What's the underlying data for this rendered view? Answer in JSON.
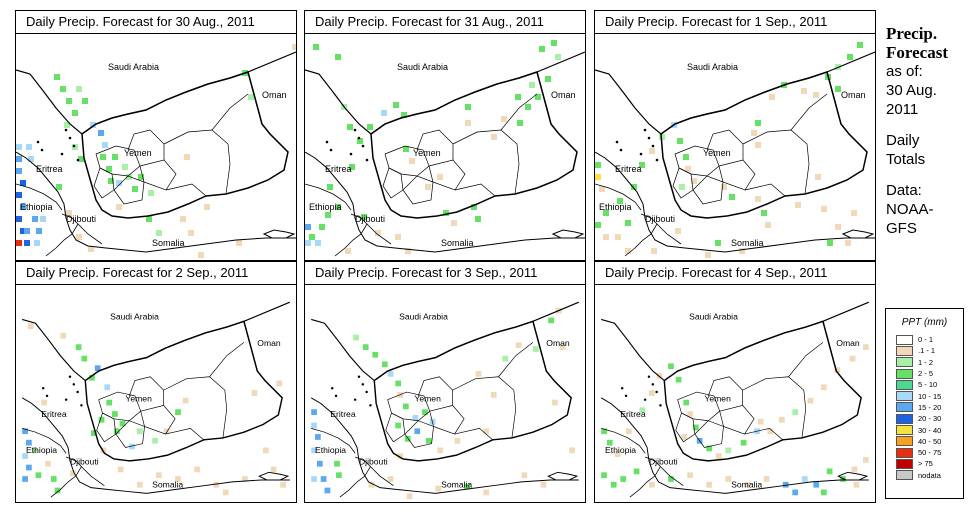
{
  "panels": [
    {
      "title": "Daily Precip. Forecast for  30 Aug., 2011"
    },
    {
      "title": "Daily Precip. Forecast for  31 Aug., 2011"
    },
    {
      "title": "Daily Precip. Forecast for  1 Sep., 2011"
    },
    {
      "title": "Daily Precip. Forecast for  2 Sep., 2011"
    },
    {
      "title": "Daily Precip. Forecast for  3 Sep., 2011"
    },
    {
      "title": "Daily Precip. Forecast for  4 Sep., 2011"
    }
  ],
  "countries": {
    "saudi_arabia": "Saudi Arabia",
    "oman": "Oman",
    "yemen": "Yemen",
    "eritrea": "Eritrea",
    "ethiopia": "Ethiopia",
    "djibouti": "Djibouti",
    "somalia": "Somalia"
  },
  "side": {
    "title_line1": "Precip.",
    "title_line2": "Forecast",
    "asof": "as of:",
    "date_line1": "30 Aug.",
    "date_line2": "2011",
    "daily_line1": "Daily",
    "daily_line2": "Totals",
    "data_line1": "Data:",
    "data_line2": "NOAA-",
    "data_line3": "GFS"
  },
  "legend": {
    "title": "PPT (mm)",
    "items": [
      {
        "label": "0 - 1",
        "color": "#ffffff"
      },
      {
        "label": ".1 - 1",
        "color": "#f0d8b8"
      },
      {
        "label": "1 - 2",
        "color": "#a8f0a8"
      },
      {
        "label": "2 - 5",
        "color": "#66e066"
      },
      {
        "label": "5 - 10",
        "color": "#4cd890"
      },
      {
        "label": "10 - 15",
        "color": "#a8d8f8"
      },
      {
        "label": "15 - 20",
        "color": "#5aa8f0"
      },
      {
        "label": "20 - 30",
        "color": "#1e64e0"
      },
      {
        "label": "30 - 40",
        "color": "#f8e040"
      },
      {
        "label": "40 - 50",
        "color": "#f8a020"
      },
      {
        "label": "50 - 75",
        "color": "#e83010"
      },
      {
        "label": "> 75",
        "color": "#c00000"
      },
      {
        "label": "nodata",
        "color": "#c8c8c8"
      }
    ]
  }
}
